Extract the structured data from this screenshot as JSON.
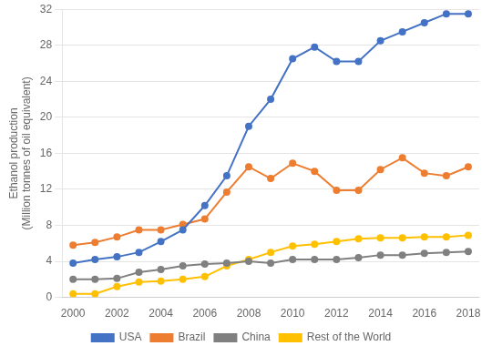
{
  "chart_data": {
    "type": "line",
    "ylabel": "Ethanol production\n(Million tonnes of oil equivalent)",
    "x": [
      2000,
      2001,
      2002,
      2003,
      2004,
      2005,
      2006,
      2007,
      2008,
      2009,
      2010,
      2011,
      2012,
      2013,
      2014,
      2015,
      2016,
      2017,
      2018
    ],
    "series": [
      {
        "name": "USA",
        "color": "#4472C4",
        "values": [
          3.8,
          4.2,
          4.5,
          5.0,
          6.2,
          7.5,
          10.2,
          13.5,
          19.0,
          22.0,
          26.5,
          27.8,
          26.2,
          26.2,
          28.5,
          29.5,
          30.5,
          31.5,
          31.5
        ]
      },
      {
        "name": "Brazil",
        "color": "#ED7D31",
        "values": [
          5.8,
          6.1,
          6.7,
          7.5,
          7.5,
          8.1,
          8.7,
          11.7,
          14.5,
          13.2,
          14.9,
          14.0,
          11.9,
          11.9,
          14.2,
          15.5,
          13.8,
          13.5,
          14.5
        ]
      },
      {
        "name": "China",
        "color": "#808080",
        "values": [
          2.0,
          2.0,
          2.1,
          2.8,
          3.1,
          3.5,
          3.7,
          3.8,
          4.0,
          3.8,
          4.2,
          4.2,
          4.2,
          4.4,
          4.7,
          4.7,
          4.9,
          5.0,
          5.1
        ]
      },
      {
        "name": "Rest of the World",
        "color": "#FFC000",
        "values": [
          0.4,
          0.4,
          1.2,
          1.7,
          1.8,
          2.0,
          2.3,
          3.5,
          4.2,
          5.0,
          5.7,
          5.9,
          6.2,
          6.5,
          6.6,
          6.6,
          6.7,
          6.7,
          6.9
        ]
      }
    ],
    "xlim": [
      1999.5,
      2018.5
    ],
    "xticks": [
      2000,
      2002,
      2004,
      2006,
      2008,
      2010,
      2012,
      2014,
      2016,
      2018
    ],
    "ylim": [
      0,
      32
    ],
    "yticks": [
      0,
      4,
      8,
      12,
      16,
      20,
      24,
      28,
      32
    ],
    "grid": "y",
    "legend": "bottom",
    "marker": "circle"
  }
}
